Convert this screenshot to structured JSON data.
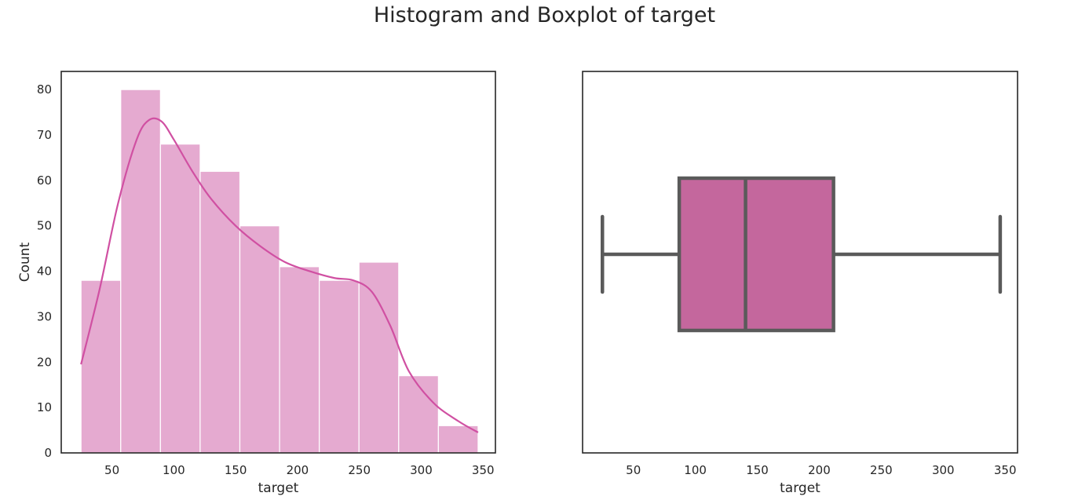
{
  "figure": {
    "title": "Histogram and Boxplot of target"
  },
  "chart_data": [
    {
      "type": "bar",
      "subtype": "histogram",
      "xlabel": "target",
      "ylabel": "Count",
      "xlim": [
        9,
        360
      ],
      "ylim": [
        0,
        84
      ],
      "xticks": [
        50,
        100,
        150,
        200,
        250,
        300,
        350
      ],
      "yticks": [
        0,
        10,
        20,
        30,
        40,
        50,
        60,
        70,
        80
      ],
      "bin_edges": [
        25,
        57.1,
        89.2,
        121.3,
        153.4,
        185.5,
        217.6,
        249.7,
        281.8,
        313.9,
        346
      ],
      "values": [
        38,
        80,
        68,
        62,
        50,
        41,
        38,
        42,
        17,
        6
      ],
      "bar_color": "#e5aad0",
      "kde": {
        "color": "#d050a2",
        "x": [
          25,
          40,
          55,
          70,
          80,
          90,
          100,
          115,
          130,
          150,
          170,
          190,
          210,
          230,
          245,
          260,
          275,
          290,
          310,
          330,
          346
        ],
        "y": [
          19.5,
          36,
          55,
          69,
          73.3,
          73,
          69,
          62,
          56,
          50,
          45.5,
          42,
          40,
          38.5,
          38,
          35.5,
          28,
          18,
          11,
          7,
          4.5
        ]
      },
      "grid": false
    },
    {
      "type": "boxplot",
      "xlabel": "target",
      "xlim": [
        9,
        360
      ],
      "xticks": [
        50,
        100,
        150,
        200,
        250,
        300,
        350
      ],
      "whisker_low": 25,
      "q1": 87,
      "median": 140.5,
      "q3": 211.5,
      "whisker_high": 346,
      "box_color": "#c4679d",
      "line_color": "#5a5a5a",
      "grid": false
    }
  ]
}
